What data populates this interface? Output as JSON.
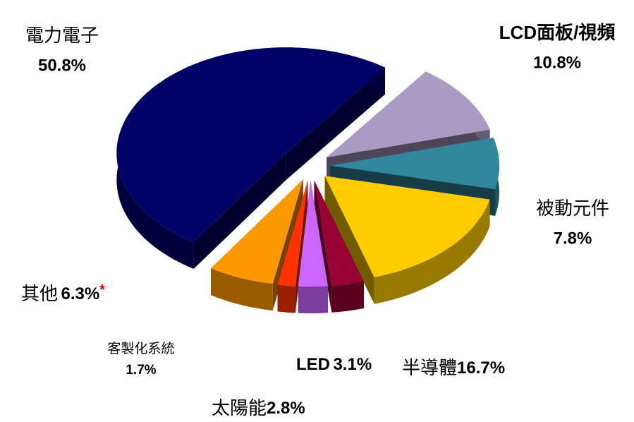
{
  "chart_data": {
    "type": "pie",
    "categories": [
      "電力電子",
      "LCD面板/視頻",
      "被動元件",
      "半導體",
      "LED",
      "太陽能",
      "客製化系統",
      "其他"
    ],
    "values": [
      50.8,
      10.8,
      7.8,
      16.7,
      3.1,
      2.8,
      1.7,
      6.3
    ],
    "value_labels": [
      "50.8%",
      "10.8%",
      "7.8%",
      "16.7%",
      "3.1%",
      "2.8%",
      "1.7%",
      "6.3%"
    ],
    "value_notes": [
      null,
      null,
      null,
      null,
      null,
      null,
      null,
      "*"
    ],
    "colors": [
      "#000066",
      "#a99bc4",
      "#31889c",
      "#ffcc00",
      "#990033",
      "#cc66ff",
      "#ff3300",
      "#ff9900"
    ]
  }
}
